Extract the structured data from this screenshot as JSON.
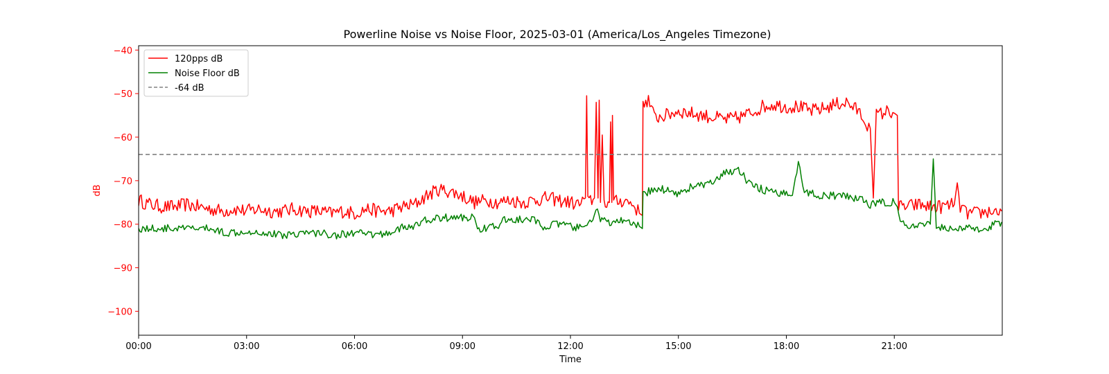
{
  "chart_data": {
    "type": "line",
    "title": "Powerline Noise vs Noise Floor, 2025-03-01 (America/Los_Angeles Timezone)",
    "xlabel": "Time",
    "ylabel": "dB",
    "x_unit": "time of day",
    "xlim": [
      "00:00",
      "24:00"
    ],
    "ylim": [
      -105.5,
      -39
    ],
    "x_ticks": [
      "00:00",
      "03:00",
      "06:00",
      "09:00",
      "12:00",
      "15:00",
      "18:00",
      "21:00"
    ],
    "y_ticks": [
      -40,
      -50,
      -60,
      -70,
      -80,
      -90,
      -100
    ],
    "y_tick_labels": [
      "−40",
      "−50",
      "−60",
      "−70",
      "−80",
      "−90",
      "−100"
    ],
    "ylabel_color": "#ff0000",
    "grid": false,
    "legend_position": "top-left",
    "series": [
      {
        "name": "120pps dB",
        "color": "#ff0000",
        "style": "solid",
        "points": [
          [
            "00:00",
            -74.5
          ],
          [
            "00:20",
            -75.5
          ],
          [
            "00:40",
            -76
          ],
          [
            "01:00",
            -76
          ],
          [
            "01:20",
            -75.5
          ],
          [
            "01:40",
            -76
          ],
          [
            "02:00",
            -76.5
          ],
          [
            "02:20",
            -77
          ],
          [
            "02:40",
            -76.5
          ],
          [
            "03:00",
            -77
          ],
          [
            "03:20",
            -76.5
          ],
          [
            "03:40",
            -77
          ],
          [
            "04:00",
            -77
          ],
          [
            "04:20",
            -76.5
          ],
          [
            "04:40",
            -77
          ],
          [
            "05:00",
            -77
          ],
          [
            "05:20",
            -77.5
          ],
          [
            "05:40",
            -77
          ],
          [
            "06:00",
            -77.5
          ],
          [
            "06:20",
            -76.5
          ],
          [
            "06:40",
            -77
          ],
          [
            "07:00",
            -77
          ],
          [
            "07:20",
            -76
          ],
          [
            "07:40",
            -75.5
          ],
          [
            "08:00",
            -73.5
          ],
          [
            "08:20",
            -72
          ],
          [
            "08:40",
            -72.5
          ],
          [
            "09:00",
            -73.5
          ],
          [
            "09:20",
            -75
          ],
          [
            "09:40",
            -74.5
          ],
          [
            "10:00",
            -75
          ],
          [
            "10:20",
            -74.5
          ],
          [
            "10:40",
            -75
          ],
          [
            "11:00",
            -74.5
          ],
          [
            "11:20",
            -74
          ],
          [
            "11:40",
            -74.5
          ],
          [
            "12:00",
            -75
          ],
          [
            "12:15",
            -75.5
          ],
          [
            "12:25",
            -74
          ],
          [
            "12:27",
            -50.5
          ],
          [
            "12:29",
            -75
          ],
          [
            "12:40",
            -74
          ],
          [
            "12:43",
            -52
          ],
          [
            "12:46",
            -74
          ],
          [
            "12:48",
            -51.5
          ],
          [
            "12:50",
            -75
          ],
          [
            "12:53",
            -59.5
          ],
          [
            "12:56",
            -75
          ],
          [
            "13:05",
            -75
          ],
          [
            "13:07",
            -56.5
          ],
          [
            "13:09",
            -75
          ],
          [
            "13:10",
            -55
          ],
          [
            "13:12",
            -75
          ],
          [
            "13:30",
            -74.5
          ],
          [
            "13:45",
            -75.5
          ],
          [
            "13:55",
            -77.5
          ],
          [
            "14:00",
            -78
          ],
          [
            "14:01",
            -52
          ],
          [
            "14:10",
            -51.5
          ],
          [
            "14:20",
            -55.5
          ],
          [
            "14:40",
            -55
          ],
          [
            "15:00",
            -54
          ],
          [
            "15:20",
            -54.5
          ],
          [
            "15:40",
            -55
          ],
          [
            "16:00",
            -55.5
          ],
          [
            "16:20",
            -56
          ],
          [
            "16:40",
            -55.5
          ],
          [
            "17:00",
            -54.5
          ],
          [
            "17:20",
            -53
          ],
          [
            "17:40",
            -52.5
          ],
          [
            "18:00",
            -53
          ],
          [
            "18:20",
            -53
          ],
          [
            "18:40",
            -54
          ],
          [
            "19:00",
            -53.5
          ],
          [
            "19:20",
            -52.5
          ],
          [
            "19:40",
            -52
          ],
          [
            "20:00",
            -54
          ],
          [
            "20:10",
            -56
          ],
          [
            "20:20",
            -58
          ],
          [
            "20:25",
            -74
          ],
          [
            "20:30",
            -55
          ],
          [
            "20:40",
            -54.5
          ],
          [
            "20:50",
            -54
          ],
          [
            "21:00",
            -54.5
          ],
          [
            "21:05",
            -55
          ],
          [
            "21:07",
            -76
          ],
          [
            "21:20",
            -76
          ],
          [
            "21:40",
            -75.5
          ],
          [
            "22:00",
            -76
          ],
          [
            "22:20",
            -76
          ],
          [
            "22:40",
            -75.5
          ],
          [
            "22:45",
            -70.5
          ],
          [
            "22:50",
            -76
          ],
          [
            "23:00",
            -77.5
          ],
          [
            "23:20",
            -77.5
          ],
          [
            "23:40",
            -77
          ],
          [
            "23:59",
            -77
          ]
        ]
      },
      {
        "name": "Noise Floor dB",
        "color": "#008000",
        "style": "solid",
        "points": [
          [
            "00:00",
            -81
          ],
          [
            "00:30",
            -81
          ],
          [
            "01:00",
            -81
          ],
          [
            "01:30",
            -81
          ],
          [
            "02:00",
            -81
          ],
          [
            "02:10",
            -81.5
          ],
          [
            "02:30",
            -82
          ],
          [
            "03:00",
            -81.5
          ],
          [
            "03:30",
            -82
          ],
          [
            "04:00",
            -82.5
          ],
          [
            "04:30",
            -82
          ],
          [
            "05:00",
            -82
          ],
          [
            "05:30",
            -82.5
          ],
          [
            "06:00",
            -82
          ],
          [
            "06:30",
            -82.5
          ],
          [
            "07:00",
            -82
          ],
          [
            "07:10",
            -81
          ],
          [
            "07:40",
            -80.5
          ],
          [
            "08:00",
            -79
          ],
          [
            "08:30",
            -78.5
          ],
          [
            "09:00",
            -78.5
          ],
          [
            "09:20",
            -78.5
          ],
          [
            "09:25",
            -81
          ],
          [
            "10:00",
            -80.5
          ],
          [
            "10:10",
            -79
          ],
          [
            "10:40",
            -79
          ],
          [
            "11:00",
            -79
          ],
          [
            "11:10",
            -80.5
          ],
          [
            "11:40",
            -80
          ],
          [
            "12:00",
            -80.5
          ],
          [
            "12:20",
            -81
          ],
          [
            "12:30",
            -80
          ],
          [
            "12:45",
            -76.5
          ],
          [
            "12:50",
            -79
          ],
          [
            "13:10",
            -80
          ],
          [
            "13:20",
            -79
          ],
          [
            "13:40",
            -80
          ],
          [
            "13:55",
            -80.5
          ],
          [
            "14:00",
            -81
          ],
          [
            "14:01",
            -73
          ],
          [
            "14:20",
            -72
          ],
          [
            "14:40",
            -72
          ],
          [
            "15:00",
            -73
          ],
          [
            "15:20",
            -71.5
          ],
          [
            "15:40",
            -71
          ],
          [
            "16:00",
            -70.5
          ],
          [
            "16:20",
            -68
          ],
          [
            "16:40",
            -67.5
          ],
          [
            "17:00",
            -71
          ],
          [
            "17:20",
            -72
          ],
          [
            "17:40",
            -73
          ],
          [
            "18:00",
            -73
          ],
          [
            "18:10",
            -72.5
          ],
          [
            "18:20",
            -66
          ],
          [
            "18:30",
            -72.5
          ],
          [
            "19:00",
            -73.5
          ],
          [
            "19:30",
            -73.5
          ],
          [
            "20:00",
            -74
          ],
          [
            "20:20",
            -75.5
          ],
          [
            "20:40",
            -75
          ],
          [
            "21:00",
            -75
          ],
          [
            "21:05",
            -76
          ],
          [
            "21:10",
            -79.5
          ],
          [
            "21:20",
            -80.5
          ],
          [
            "21:50",
            -80.5
          ],
          [
            "22:00",
            -80
          ],
          [
            "22:05",
            -65
          ],
          [
            "22:10",
            -80.5
          ],
          [
            "22:40",
            -81
          ],
          [
            "23:00",
            -81
          ],
          [
            "23:30",
            -81
          ],
          [
            "23:59",
            -79.5
          ]
        ]
      },
      {
        "name": "-64 dB",
        "color": "#808080",
        "style": "dashed",
        "points": [
          [
            "00:00",
            -64
          ],
          [
            "23:59",
            -64
          ]
        ]
      }
    ]
  }
}
